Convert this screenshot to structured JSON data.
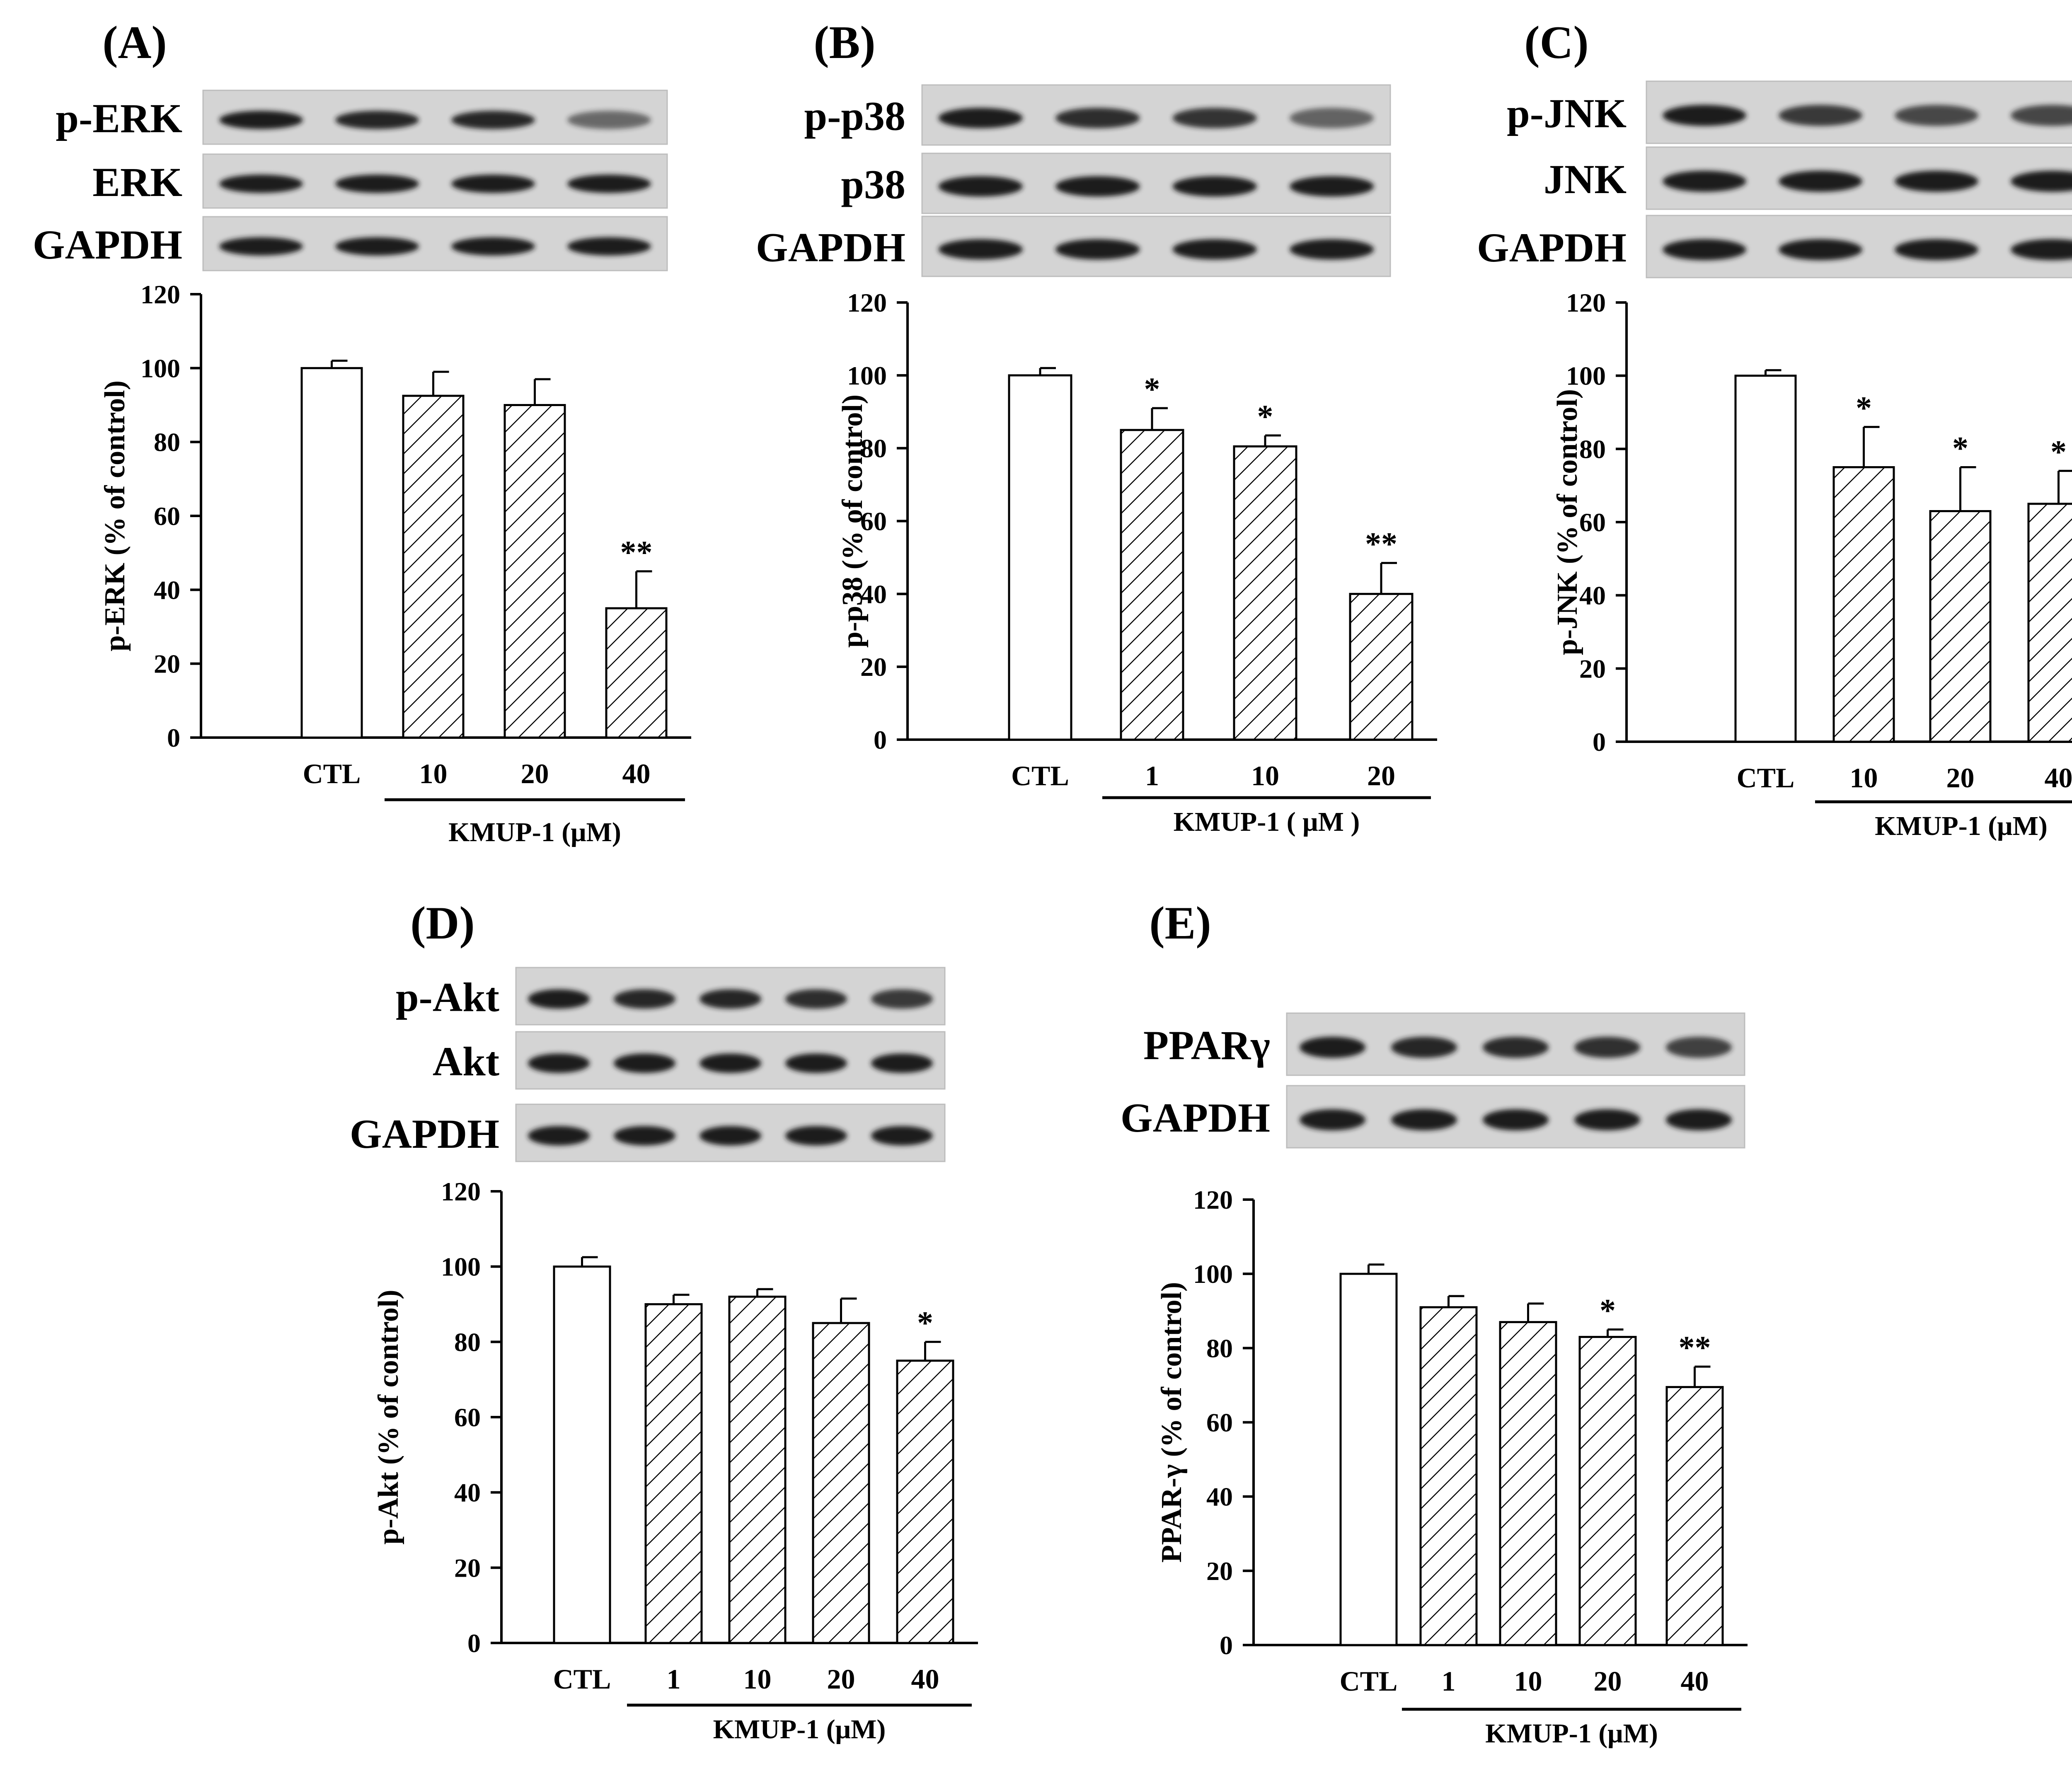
{
  "hatch_color": "#000000",
  "blot_background": "#d4d4d4",
  "band_color": "#1a1a1a",
  "chart_data": [
    {
      "panel": "(A)",
      "type": "bar",
      "blots": [
        "p-ERK",
        "ERK",
        "GAPDH"
      ],
      "categories": [
        "CTL",
        "10",
        "20",
        "40"
      ],
      "values": [
        100,
        92.5,
        90,
        35
      ],
      "errors": [
        2,
        6.5,
        7,
        10
      ],
      "significance": [
        "",
        "",
        "",
        "**"
      ],
      "ylabel": "p-ERK (% of control)",
      "treatment_label": "KMUP-1 (μM)",
      "ylim": [
        0,
        120
      ],
      "yticks": [
        "0",
        "20",
        "40",
        "60",
        "80",
        "100",
        "120"
      ]
    },
    {
      "panel": "(B)",
      "type": "bar",
      "blots": [
        "p-p38",
        "p38",
        "GAPDH"
      ],
      "categories": [
        "CTL",
        "1",
        "10",
        "20"
      ],
      "values": [
        100,
        85,
        80.5,
        40
      ],
      "errors": [
        2,
        6,
        3,
        8.5
      ],
      "significance": [
        "",
        "*",
        "*",
        "**"
      ],
      "ylabel": "p-p38 (% of control)",
      "treatment_label": "KMUP-1 ( μM )",
      "ylim": [
        0,
        120
      ],
      "yticks": [
        "0",
        "20",
        "40",
        "60",
        "80",
        "100",
        "120"
      ]
    },
    {
      "panel": "(C)",
      "type": "bar",
      "blots": [
        "p-JNK",
        "JNK",
        "GAPDH"
      ],
      "categories": [
        "CTL",
        "10",
        "20",
        "40"
      ],
      "values": [
        100,
        75,
        63,
        65
      ],
      "errors": [
        1.5,
        11,
        12,
        9
      ],
      "significance": [
        "",
        "*",
        "*",
        "*"
      ],
      "ylabel": "p-JNK (% of control)",
      "treatment_label": "KMUP-1 (μM)",
      "ylim": [
        0,
        120
      ],
      "yticks": [
        "0",
        "20",
        "40",
        "60",
        "80",
        "100",
        "120"
      ]
    },
    {
      "panel": "(D)",
      "type": "bar",
      "blots": [
        "p-Akt",
        "Akt",
        "GAPDH"
      ],
      "categories": [
        "CTL",
        "1",
        "10",
        "20",
        "40"
      ],
      "values": [
        100,
        90,
        92,
        85,
        75
      ],
      "errors": [
        2.5,
        2.5,
        2,
        6.5,
        5
      ],
      "significance": [
        "",
        "",
        "",
        "",
        "*"
      ],
      "ylabel": "p-Akt (% of control)",
      "treatment_label": "KMUP-1 (μM)",
      "ylim": [
        0,
        120
      ],
      "yticks": [
        "0",
        "20",
        "40",
        "60",
        "80",
        "100",
        "120"
      ]
    },
    {
      "panel": "(E)",
      "type": "bar",
      "blots": [
        "PPARγ",
        "GAPDH"
      ],
      "categories": [
        "CTL",
        "1",
        "10",
        "20",
        "40"
      ],
      "values": [
        100,
        91,
        87,
        83,
        69.5
      ],
      "errors": [
        2.5,
        3,
        5,
        2,
        5.5
      ],
      "significance": [
        "",
        "",
        "",
        "*",
        "**"
      ],
      "ylabel": "PPAR-γ (% of control)",
      "treatment_label": "KMUP-1 (μM)",
      "ylim": [
        0,
        120
      ],
      "yticks": [
        "0",
        "20",
        "40",
        "60",
        "80",
        "100",
        "120"
      ]
    }
  ]
}
